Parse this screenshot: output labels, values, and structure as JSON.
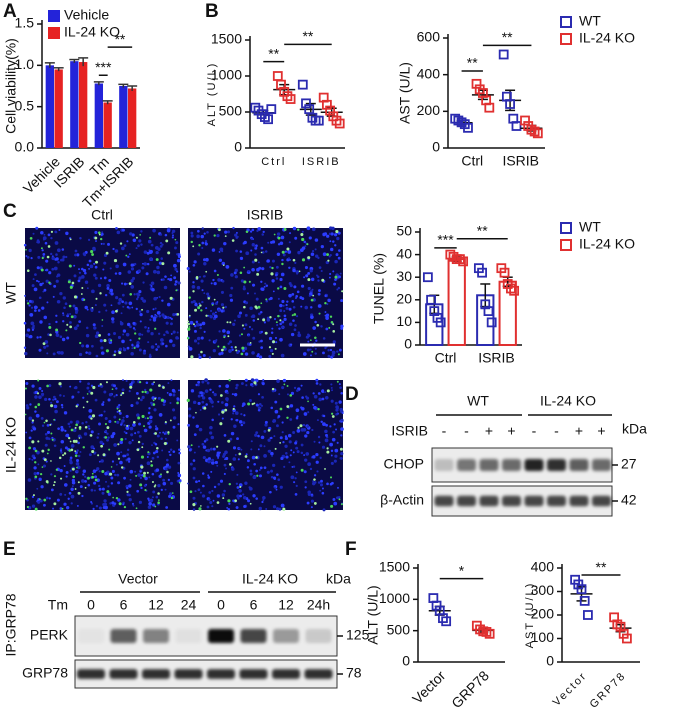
{
  "panel_letters": [
    "A",
    "B",
    "C",
    "D",
    "E",
    "F"
  ],
  "chart_data": [
    {
      "type": "bar",
      "ylabel": "Cell viability(%)",
      "categories": [
        "Vehicle",
        "ISRIB",
        "Tm",
        "Tm+ISRIB"
      ],
      "series": [
        {
          "name": "Vehicle",
          "color": "#2323d9",
          "values": [
            1.0,
            1.05,
            0.78,
            0.75
          ],
          "errors": [
            0.03,
            0.02,
            0.02,
            0.02
          ]
        },
        {
          "name": "IL-24 KO",
          "color": "#e62222",
          "values": [
            0.95,
            1.04,
            0.55,
            0.72
          ],
          "errors": [
            0.02,
            0.05,
            0.02,
            0.03
          ]
        }
      ],
      "ylim": [
        0,
        1.5
      ],
      "yticks": [
        {
          "value": 0,
          "label": "0.0"
        },
        {
          "value": 0.5,
          "label": "0.5"
        },
        {
          "value": 1.0,
          "label": "1.0"
        },
        {
          "value": 1.5,
          "label": "1.5"
        }
      ],
      "annotations": [
        "***",
        "**"
      ],
      "legend": true
    },
    {
      "type": "dot",
      "ylabel": "ALT (U/L)",
      "categories": [
        "Ctrl",
        "ISRIB"
      ],
      "series": [
        {
          "color": "#2b2bb0",
          "values": [
            490,
            537
          ],
          "errors": [
            30,
            80
          ],
          "points": [
            [
              560,
              520,
              470,
              430,
              400,
              540
            ],
            [
              880,
              620,
              540,
              420,
              380,
              380
            ]
          ]
        },
        {
          "color": "#e03030",
          "values": [
            810,
            497
          ],
          "errors": [
            70,
            55
          ],
          "points": [
            [
              1000,
              880,
              780,
              720,
              680
            ],
            [
              700,
              600,
              520,
              440,
              380,
              340
            ]
          ]
        }
      ],
      "ylim": [
        0,
        1500
      ],
      "yticks": [
        0,
        500,
        1000,
        1500
      ],
      "annotations": [
        "**",
        "**"
      ]
    },
    {
      "type": "dot",
      "ylabel": "AST (U/L)",
      "categories": [
        "Ctrl",
        "ISRIB"
      ],
      "series": [
        {
          "name": "WT",
          "color": "#2b2bb0",
          "values": [
            138,
            260
          ],
          "errors": [
            10,
            55
          ],
          "points": [
            [
              160,
              150,
              140,
              130,
              110
            ],
            [
              510,
              280,
              240,
              160,
              120
            ]
          ]
        },
        {
          "name": "IL-24 KO",
          "color": "#e03030",
          "values": [
            290,
            108
          ],
          "errors": [
            25,
            15
          ],
          "points": [
            [
              350,
              320,
              300,
              260,
              220
            ],
            [
              150,
              120,
              100,
              90,
              80
            ]
          ]
        }
      ],
      "ylim": [
        0,
        600
      ],
      "yticks": [
        0,
        200,
        400,
        600
      ],
      "annotations": [
        "**",
        "**"
      ],
      "legend": true
    },
    {
      "type": "bardot",
      "ylabel": "TUNEL (%)",
      "categories": [
        "Ctrl",
        "ISRIB"
      ],
      "series": [
        {
          "name": "WT",
          "color": "#2b2bb0",
          "values": [
            18,
            22
          ],
          "errors": [
            4,
            5
          ],
          "points": [
            [
              30,
              20,
              15,
              12,
              10
            ],
            [
              34,
              32,
              18,
              15,
              10
            ]
          ]
        },
        {
          "name": "IL-24 KO",
          "color": "#e03030",
          "values": [
            38,
            28
          ],
          "errors": [
            1,
            2
          ],
          "points": [
            [
              40,
              39,
              38,
              38,
              37
            ],
            [
              34,
              32,
              27,
              25,
              24
            ]
          ]
        }
      ],
      "ylim": [
        0,
        50
      ],
      "yticks": [
        0,
        10,
        20,
        30,
        40,
        50
      ],
      "annotations": [
        "***",
        "**"
      ],
      "legend": true
    },
    {
      "type": "dot",
      "ylabel": "ALT (U/L)",
      "categories": [
        "Vector",
        "GRP78"
      ],
      "series": [
        {
          "colors": [
            "#2b2bb0",
            "#e03030"
          ],
          "values": [
            818,
            504
          ],
          "errors": [
            70,
            25
          ],
          "points": [
            [
              1020,
              900,
              820,
              700,
              650
            ],
            [
              580,
              520,
              490,
              480,
              450
            ]
          ]
        }
      ],
      "ylim": [
        0,
        1500
      ],
      "yticks": [
        0,
        500,
        1000,
        1500
      ],
      "annotations": [
        "*"
      ]
    },
    {
      "type": "dot",
      "ylabel": "AST (U/L)",
      "categories": [
        "Vector",
        "GRP78"
      ],
      "series": [
        {
          "colors": [
            "#2b2bb0",
            "#e03030"
          ],
          "values": [
            290,
            144
          ],
          "errors": [
            30,
            15
          ],
          "points": [
            [
              350,
              330,
              310,
              260,
              200
            ],
            [
              190,
              160,
              150,
              120,
              100
            ]
          ]
        }
      ],
      "ylim": [
        0,
        400
      ],
      "yticks": [
        0,
        100,
        200,
        300,
        400
      ],
      "annotations": [
        "**"
      ]
    }
  ],
  "tunel_images": {
    "columns": [
      "Ctrl",
      "ISRIB"
    ],
    "rows": [
      "WT",
      "IL-24 KO"
    ]
  },
  "blot_d": {
    "header": [
      "WT",
      "IL-24 KO"
    ],
    "unit": "kDa",
    "treatment": "ISRIB",
    "signs": [
      "-",
      "-",
      "+",
      "+",
      "-",
      "-",
      "+",
      "+"
    ],
    "rows": [
      {
        "label": "CHOP",
        "kda": 27
      },
      {
        "label": "β-Actin",
        "kda": 42
      }
    ]
  },
  "blot_e": {
    "ip": "IP:GRP78",
    "header": [
      "Vector",
      "IL-24 KO"
    ],
    "unit": "kDa",
    "treatment": "Tm",
    "times": [
      "0",
      "6",
      "12",
      "24",
      "0",
      "6",
      "12",
      "24h"
    ],
    "rows": [
      {
        "label": "PERK",
        "kda": 125
      },
      {
        "label": "GRP78",
        "kda": 78
      }
    ]
  }
}
